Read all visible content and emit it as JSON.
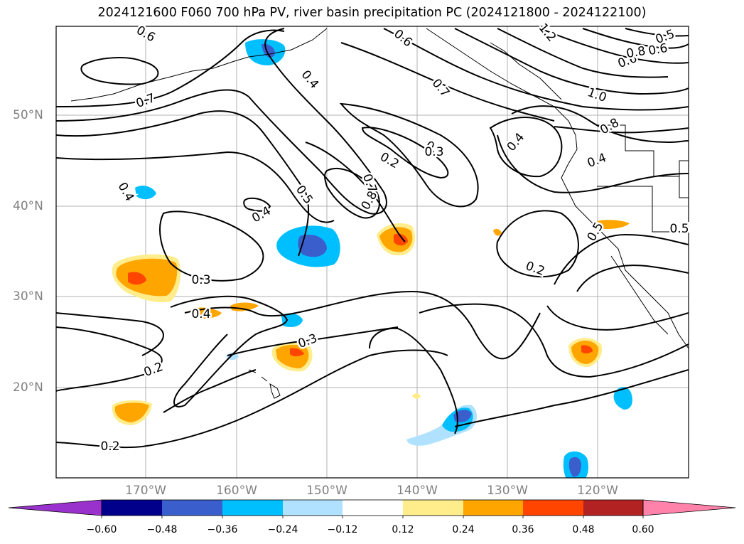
{
  "title": "2024121600 F060 700 hPa PV, river basin precipitation PC (2024121800 - 2024122100)",
  "map": {
    "lat_labels": [
      "50°N",
      "40°N",
      "30°N",
      "20°N"
    ],
    "lon_labels": [
      "170°W",
      "160°W",
      "150°W",
      "140°W",
      "130°W",
      "120°W"
    ],
    "contour_labels": [
      {
        "text": "0.6"
      },
      {
        "text": "0.7"
      },
      {
        "text": "0.4"
      },
      {
        "text": "0.6"
      },
      {
        "text": "0.7"
      },
      {
        "text": "1.0"
      },
      {
        "text": "0.8"
      },
      {
        "text": "0.6"
      },
      {
        "text": "0.5"
      },
      {
        "text": "1.2"
      },
      {
        "text": "0.6"
      },
      {
        "text": "0.2"
      },
      {
        "text": "0.3"
      },
      {
        "text": "0.4"
      },
      {
        "text": "0.8"
      },
      {
        "text": "0.4"
      },
      {
        "text": "0.7"
      },
      {
        "text": "0.8"
      },
      {
        "text": "0.5"
      },
      {
        "text": "0.3"
      },
      {
        "text": "0.4"
      },
      {
        "text": "0.3"
      },
      {
        "text": "0.4"
      },
      {
        "text": "0.3"
      },
      {
        "text": "0.2"
      },
      {
        "text": "0.2"
      },
      {
        "text": "0.5"
      },
      {
        "text": "0.4"
      },
      {
        "text": "0.2"
      },
      {
        "text": "0.5"
      }
    ]
  },
  "colorbar": {
    "ticks": [
      "−0.60",
      "−0.48",
      "−0.36",
      "−0.24",
      "−0.12",
      "0.12",
      "0.24",
      "0.36",
      "0.48",
      "0.60"
    ],
    "colors": [
      "#9932cc",
      "#00008b",
      "#3a5fcd",
      "#00bfff",
      "#b0e2ff",
      "#ffffff",
      "#ffec8b",
      "#ffa500",
      "#ff4500",
      "#b22222",
      "#ff82ab"
    ]
  }
}
